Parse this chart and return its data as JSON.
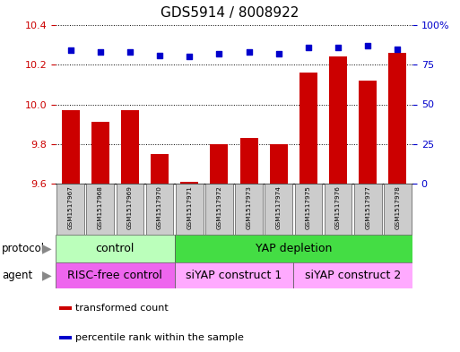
{
  "title": "GDS5914 / 8008922",
  "samples": [
    "GSM1517967",
    "GSM1517968",
    "GSM1517969",
    "GSM1517970",
    "GSM1517971",
    "GSM1517972",
    "GSM1517973",
    "GSM1517974",
    "GSM1517975",
    "GSM1517976",
    "GSM1517977",
    "GSM1517978"
  ],
  "transformed_counts": [
    9.97,
    9.91,
    9.97,
    9.75,
    9.61,
    9.8,
    9.83,
    9.8,
    10.16,
    10.24,
    10.12,
    10.26
  ],
  "percentile_ranks": [
    84,
    83,
    83,
    81,
    80,
    82,
    83,
    82,
    86,
    86,
    87,
    85
  ],
  "ylim_left": [
    9.6,
    10.4
  ],
  "ylim_right": [
    0,
    100
  ],
  "yticks_left": [
    9.6,
    9.8,
    10.0,
    10.2,
    10.4
  ],
  "yticks_right": [
    0,
    25,
    50,
    75,
    100
  ],
  "bar_color": "#cc0000",
  "dot_color": "#0000cc",
  "protocol_groups": [
    {
      "label": "control",
      "start": 0,
      "end": 4,
      "color": "#bbffbb"
    },
    {
      "label": "YAP depletion",
      "start": 4,
      "end": 12,
      "color": "#44dd44"
    }
  ],
  "agent_groups": [
    {
      "label": "RISC-free control",
      "start": 0,
      "end": 4,
      "color": "#ee66ee"
    },
    {
      "label": "siYAP construct 1",
      "start": 4,
      "end": 8,
      "color": "#ffaaff"
    },
    {
      "label": "siYAP construct 2",
      "start": 8,
      "end": 12,
      "color": "#ffaaff"
    }
  ],
  "legend_items": [
    {
      "label": "transformed count",
      "color": "#cc0000"
    },
    {
      "label": "percentile rank within the sample",
      "color": "#0000cc"
    }
  ],
  "protocol_label": "protocol",
  "agent_label": "agent",
  "background_color": "#ffffff",
  "tick_label_color_left": "#cc0000",
  "tick_label_color_right": "#0000cc",
  "sample_box_color": "#cccccc",
  "arrow_color": "#888888"
}
